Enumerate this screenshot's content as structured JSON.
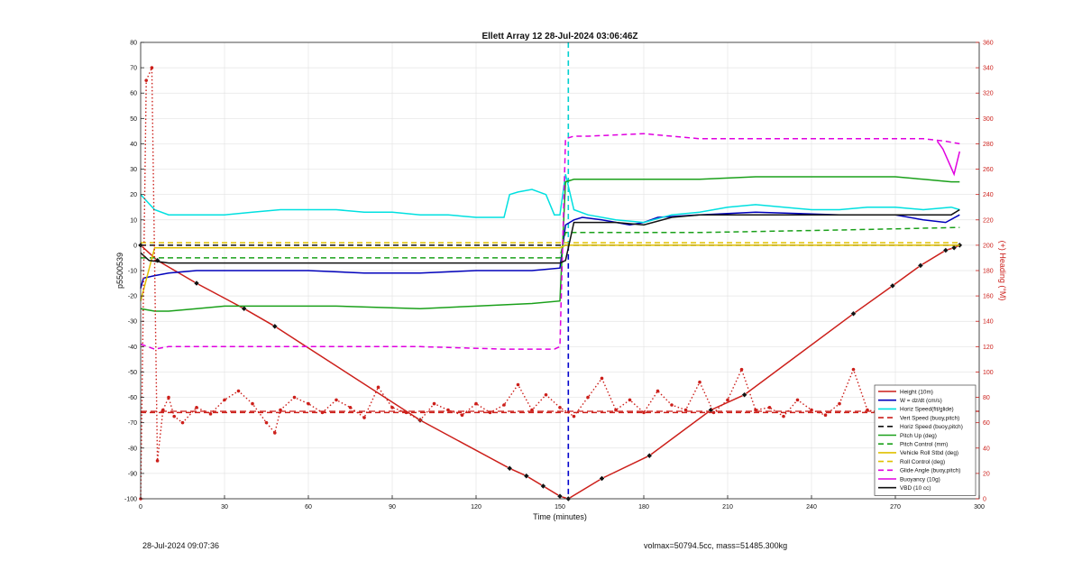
{
  "chart_data": {
    "type": "line",
    "title": "Ellett Array 12 28-Jul-2024 03:06:46Z",
    "xlabel": "Time (minutes)",
    "ylabel_left": "p5500539",
    "ylabel_right": "(+) Heading (°M)",
    "xlim": [
      0,
      300
    ],
    "ylim_left": [
      -100,
      80
    ],
    "ylim_right": [
      0,
      360
    ],
    "xticks": [
      0,
      30,
      60,
      90,
      120,
      150,
      180,
      210,
      240,
      270,
      300
    ],
    "yticks_left": [
      -100,
      -90,
      -80,
      -70,
      -60,
      -50,
      -40,
      -30,
      -20,
      -10,
      0,
      10,
      20,
      30,
      40,
      50,
      60,
      70,
      80
    ],
    "yticks_right": [
      0,
      20,
      40,
      60,
      80,
      100,
      120,
      140,
      160,
      180,
      200,
      220,
      240,
      260,
      280,
      300,
      320,
      340,
      360
    ],
    "grid": true,
    "legend_position": "bottom-right",
    "vertical_lines": [
      {
        "x": 153,
        "color": "#00d0d0",
        "style": "dashed",
        "range": "upper"
      },
      {
        "x": 153,
        "color": "#0000cc",
        "style": "dashed",
        "range": "lower"
      }
    ],
    "heading_mean": 69,
    "series": [
      {
        "name": "Height (10m)",
        "color": "#cc1f1a",
        "style": "solid",
        "axis": "left",
        "x": [
          0,
          6,
          20,
          37,
          48,
          100,
          132,
          138,
          144,
          150,
          153,
          165,
          182,
          204,
          216,
          255,
          269,
          279,
          288,
          291,
          293
        ],
        "y": [
          0,
          -6,
          -15,
          -25,
          -32,
          -69,
          -88,
          -91,
          -95,
          -99,
          -100,
          -92,
          -83,
          -65,
          -59,
          -27,
          -16,
          -8,
          -2,
          -1,
          0
        ]
      },
      {
        "name": "W = dz/dt (cm/s)",
        "color": "#0000bb",
        "style": "solid",
        "axis": "left",
        "x": [
          0,
          1,
          5,
          10,
          20,
          40,
          60,
          80,
          100,
          120,
          140,
          150,
          152,
          155,
          158,
          165,
          175,
          180,
          185,
          200,
          220,
          250,
          270,
          280,
          288,
          293
        ],
        "y": [
          -17,
          -13,
          -12,
          -11,
          -10,
          -10,
          -10,
          -11,
          -11,
          -10,
          -10,
          -9,
          8,
          10,
          11,
          10,
          8,
          9,
          11,
          12,
          13,
          12,
          12,
          10,
          9,
          12
        ]
      },
      {
        "name": "Horiz Speed(fit/glide)",
        "color": "#00e0e0",
        "style": "solid",
        "axis": "left",
        "x": [
          0,
          5,
          10,
          20,
          30,
          40,
          50,
          60,
          70,
          80,
          90,
          100,
          110,
          120,
          130,
          132,
          135,
          140,
          145,
          148,
          150,
          152,
          155,
          160,
          170,
          180,
          190,
          200,
          210,
          220,
          240,
          250,
          260,
          270,
          280,
          290,
          293
        ],
        "y": [
          20,
          14,
          12,
          12,
          12,
          13,
          14,
          14,
          14,
          13,
          13,
          12,
          12,
          11,
          11,
          20,
          21,
          22,
          20,
          12,
          12,
          28,
          14,
          12,
          10,
          9,
          12,
          13,
          15,
          16,
          14,
          14,
          15,
          15,
          14,
          15,
          14
        ]
      },
      {
        "name": "Vert Speed (buoy,pitch)",
        "color": "#cc1f1a",
        "style": "dashed",
        "axis": "left",
        "x": [
          0,
          293
        ],
        "y": [
          -66,
          -66
        ]
      },
      {
        "name": "Horiz Speed (buoy,pitch)",
        "color": "#111111",
        "style": "dashed",
        "axis": "left",
        "x": [
          0,
          293
        ],
        "y": [
          0,
          0
        ]
      },
      {
        "name": "Pitch Up (deg)",
        "color": "#1aa01a",
        "style": "solid",
        "axis": "left",
        "x": [
          0,
          5,
          10,
          20,
          30,
          50,
          70,
          100,
          120,
          140,
          150,
          152,
          155,
          160,
          180,
          200,
          220,
          250,
          270,
          280,
          290,
          293
        ],
        "y": [
          -25,
          -26,
          -26,
          -25,
          -24,
          -24,
          -24,
          -25,
          -24,
          -23,
          -22,
          25,
          26,
          26,
          26,
          26,
          27,
          27,
          27,
          26,
          25,
          25
        ]
      },
      {
        "name": "Pitch Control (mm)",
        "color": "#1aa01a",
        "style": "dashed",
        "axis": "left",
        "x": [
          0,
          10,
          50,
          100,
          150,
          152,
          160,
          200,
          250,
          293
        ],
        "y": [
          -5,
          -5,
          -5,
          -5,
          -5,
          5,
          5,
          5,
          6,
          7
        ]
      },
      {
        "name": "Vehicle Roll Stbd (deg)",
        "color": "#e0c000",
        "style": "solid",
        "axis": "left",
        "x": [
          0,
          5,
          10,
          20,
          50,
          100,
          150,
          152,
          160,
          200,
          250,
          280,
          293
        ],
        "y": [
          -22,
          -1,
          -1,
          -1,
          -1,
          -1,
          -1,
          0,
          0,
          0,
          0,
          0,
          0
        ]
      },
      {
        "name": "Roll Control (deg)",
        "color": "#e0c000",
        "style": "dashed",
        "axis": "left",
        "x": [
          0,
          5,
          10,
          20,
          50,
          100,
          150,
          152,
          160,
          200,
          250,
          293
        ],
        "y": [
          1,
          1,
          1,
          1,
          1,
          1,
          1,
          1,
          1,
          1,
          1,
          1
        ]
      },
      {
        "name": "Glide Angle (buoy,pitch)",
        "color": "#e000e0",
        "style": "dashed",
        "axis": "left",
        "x": [
          0,
          5,
          10,
          20,
          50,
          100,
          130,
          148,
          150,
          152,
          155,
          160,
          180,
          200,
          220,
          250,
          270,
          280,
          288,
          293
        ],
        "y": [
          -39,
          -41,
          -40,
          -40,
          -40,
          -40,
          -41,
          -41,
          -40,
          42,
          43,
          43,
          44,
          42,
          42,
          42,
          42,
          42,
          41,
          40
        ]
      },
      {
        "name": "Buoyancy (10g)",
        "color": "#e000e0",
        "style": "solid",
        "axis": "left",
        "x": [
          285,
          287,
          289,
          291,
          293
        ],
        "y": [
          41,
          38,
          33,
          28,
          37
        ]
      },
      {
        "name": "VBD (10 cc)",
        "color": "#111111",
        "style": "solid",
        "axis": "left",
        "x": [
          0,
          3,
          10,
          50,
          100,
          148,
          150,
          152,
          155,
          160,
          170,
          180,
          190,
          200,
          250,
          270,
          280,
          290,
          293
        ],
        "y": [
          -3,
          -6,
          -7,
          -7,
          -7,
          -7,
          -7,
          -6,
          9,
          9,
          9,
          8,
          11,
          12,
          12,
          12,
          12,
          12,
          14
        ]
      },
      {
        "name": "Heading",
        "color": "#cc1f1a",
        "style": "dotted",
        "axis": "right",
        "x": [
          0,
          2,
          4,
          6,
          8,
          10,
          12,
          15,
          20,
          25,
          30,
          35,
          40,
          45,
          48,
          50,
          55,
          60,
          65,
          70,
          75,
          80,
          85,
          90,
          95,
          100,
          105,
          110,
          115,
          120,
          125,
          130,
          135,
          140,
          145,
          150,
          155,
          160,
          165,
          170,
          175,
          180,
          185,
          190,
          195,
          200,
          205,
          210,
          215,
          220,
          225,
          230,
          235,
          240,
          245,
          250,
          255,
          260,
          265,
          270,
          275,
          280,
          285,
          290,
          293
        ],
        "y": [
          0,
          330,
          340,
          30,
          70,
          80,
          65,
          60,
          72,
          67,
          78,
          85,
          75,
          60,
          52,
          70,
          80,
          75,
          68,
          78,
          72,
          64,
          88,
          72,
          68,
          62,
          75,
          70,
          66,
          75,
          68,
          74,
          90,
          70,
          82,
          72,
          65,
          80,
          95,
          70,
          78,
          68,
          85,
          74,
          70,
          92,
          68,
          78,
          102,
          70,
          72,
          65,
          78,
          70,
          66,
          75,
          102,
          70,
          68,
          62,
          80,
          75,
          70,
          88,
          70
        ]
      }
    ]
  },
  "footer": {
    "date_stamp": "28-Jul-2024 09:07:36",
    "vol_info": "volmax=50794.5cc, mass=51485.300kg"
  }
}
